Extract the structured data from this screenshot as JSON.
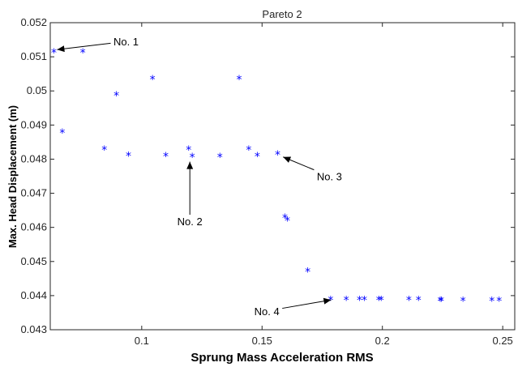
{
  "chart_data": {
    "type": "scatter",
    "title": "Pareto 2",
    "xlabel": "Sprung Mass Acceleration RMS",
    "ylabel": "Max. Head Displacement (m)",
    "xlim": [
      0.062,
      0.255
    ],
    "ylim": [
      0.043,
      0.052
    ],
    "xticks": [
      0.1,
      0.15,
      0.2,
      0.25
    ],
    "xtick_labels": [
      "0.1",
      "0.15",
      "0.2",
      "0.25"
    ],
    "yticks": [
      0.043,
      0.044,
      0.045,
      0.046,
      0.047,
      0.048,
      0.049,
      0.05,
      0.051,
      0.052
    ],
    "ytick_labels": [
      "0.043",
      "0.044",
      "0.045",
      "0.046",
      "0.047",
      "0.048",
      "0.049",
      "0.05",
      "0.051",
      "0.052"
    ],
    "grid": false,
    "marker": "*",
    "color": "#0000ff",
    "points": [
      {
        "x": 0.0635,
        "y": 0.05114
      },
      {
        "x": 0.0755,
        "y": 0.05114
      },
      {
        "x": 0.067,
        "y": 0.0488
      },
      {
        "x": 0.0895,
        "y": 0.04989
      },
      {
        "x": 0.1045,
        "y": 0.05036
      },
      {
        "x": 0.1405,
        "y": 0.05036
      },
      {
        "x": 0.0845,
        "y": 0.0483
      },
      {
        "x": 0.0945,
        "y": 0.04812
      },
      {
        "x": 0.11,
        "y": 0.0481
      },
      {
        "x": 0.1195,
        "y": 0.0483
      },
      {
        "x": 0.121,
        "y": 0.04808
      },
      {
        "x": 0.1325,
        "y": 0.04808
      },
      {
        "x": 0.1445,
        "y": 0.0483
      },
      {
        "x": 0.148,
        "y": 0.0481
      },
      {
        "x": 0.1565,
        "y": 0.04815
      },
      {
        "x": 0.1595,
        "y": 0.0463
      },
      {
        "x": 0.1605,
        "y": 0.04622
      },
      {
        "x": 0.169,
        "y": 0.04472
      },
      {
        "x": 0.1785,
        "y": 0.04389
      },
      {
        "x": 0.185,
        "y": 0.04389
      },
      {
        "x": 0.1905,
        "y": 0.04389
      },
      {
        "x": 0.1925,
        "y": 0.04389
      },
      {
        "x": 0.1985,
        "y": 0.04389
      },
      {
        "x": 0.1995,
        "y": 0.04389
      },
      {
        "x": 0.211,
        "y": 0.04389
      },
      {
        "x": 0.215,
        "y": 0.04389
      },
      {
        "x": 0.224,
        "y": 0.04387
      },
      {
        "x": 0.2245,
        "y": 0.04387
      },
      {
        "x": 0.2335,
        "y": 0.04387
      },
      {
        "x": 0.2455,
        "y": 0.04387
      },
      {
        "x": 0.2485,
        "y": 0.04387
      }
    ],
    "annotations": [
      {
        "label": "No. 1",
        "text_x": 0.0935,
        "text_y": 0.05145,
        "point_x": 0.0635,
        "point_y": 0.0512
      },
      {
        "label": "No. 2",
        "text_x": 0.12,
        "text_y": 0.04618,
        "point_x": 0.12,
        "point_y": 0.04802
      },
      {
        "label": "No. 3",
        "text_x": 0.178,
        "text_y": 0.0475,
        "point_x": 0.1575,
        "point_y": 0.0481
      },
      {
        "label": "No. 4",
        "text_x": 0.152,
        "text_y": 0.04355,
        "point_x": 0.18,
        "point_y": 0.04389
      }
    ]
  }
}
